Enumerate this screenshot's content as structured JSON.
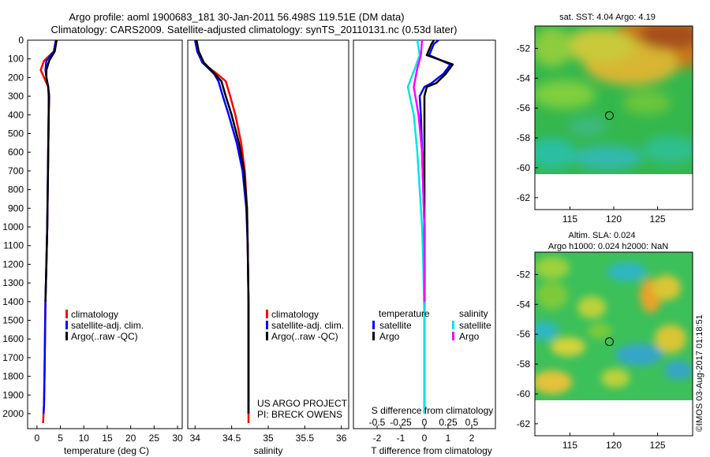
{
  "figure": {
    "title_line1": "Argo profile: aoml 1900683_181 30-Jan-2011 56.498S 119.51E (DM data)",
    "title_line2": "Climatology: CARS2009. Satellite-adjusted climatology: synTS_20110131.nc (0.53d later)",
    "credit": "US ARGO PROJECT",
    "pi": "PI: BRECK OWENS",
    "watermark": "©IMOS 03-Aug-2017 01:18:51"
  },
  "colors": {
    "climatology": "#ff0000",
    "satellite": "#0000ff",
    "argo": "#000000",
    "satellite_s": "#00e5e5",
    "argo_s": "#ff00ff"
  },
  "chart_data": [
    {
      "type": "line",
      "xlabel": "temperature (deg C)",
      "ylabel": "",
      "xlim": [
        -2,
        31
      ],
      "ylim": [
        2080,
        0
      ],
      "xticks": [
        0,
        5,
        10,
        15,
        20,
        25,
        30
      ],
      "yticks": [
        0,
        100,
        200,
        300,
        400,
        500,
        600,
        700,
        800,
        900,
        1000,
        1100,
        1200,
        1300,
        1400,
        1500,
        1600,
        1700,
        1800,
        1900,
        2000
      ],
      "legend": [
        "climatology",
        "satellite-adj. clim.",
        "Argo(..raw -QC)"
      ],
      "series": [
        {
          "name": "climatology",
          "color": "#ff0000",
          "x": [
            4.0,
            3.6,
            1.5,
            0.8,
            1.5,
            2.4,
            2.6,
            2.5,
            2.4,
            2.3,
            2.2,
            2.0,
            1.8,
            1.7,
            1.6,
            1.5,
            1.3
          ],
          "y": [
            0,
            60,
            110,
            160,
            200,
            250,
            300,
            400,
            600,
            800,
            1000,
            1200,
            1400,
            1600,
            1800,
            1950,
            2050
          ]
        },
        {
          "name": "satellite-adj. clim.",
          "color": "#0000ff",
          "x": [
            4.1,
            3.6,
            2.0,
            1.8,
            2.0,
            2.4,
            2.5,
            2.5,
            2.4,
            2.3,
            2.2,
            2.0,
            1.8,
            1.7,
            1.6,
            1.5,
            1.4
          ],
          "y": [
            0,
            60,
            110,
            160,
            200,
            250,
            300,
            400,
            600,
            800,
            1000,
            1200,
            1400,
            1600,
            1800,
            1950,
            2000
          ]
        },
        {
          "name": "Argo(..raw -QC)",
          "color": "#000000",
          "x": [
            4.2,
            3.8,
            2.6,
            2.0,
            2.0,
            2.4,
            2.6,
            2.5,
            2.4,
            2.3,
            2.2,
            2.0,
            1.8
          ],
          "y": [
            0,
            60,
            110,
            160,
            200,
            250,
            300,
            400,
            600,
            800,
            1000,
            1200,
            1400
          ]
        }
      ]
    },
    {
      "type": "line",
      "xlabel": "salinity",
      "xlim": [
        33.9,
        36.1
      ],
      "ylim": [
        2080,
        0
      ],
      "xticks": [
        34,
        34.5,
        35,
        35.5,
        36
      ],
      "legend": [
        "climatology",
        "satellite-adj. clim.",
        "Argo(..raw -QC)"
      ],
      "series": [
        {
          "name": "climatology",
          "color": "#ff0000",
          "x": [
            34.0,
            34.03,
            34.1,
            34.3,
            34.42,
            34.48,
            34.55,
            34.63,
            34.68,
            34.71,
            34.72,
            34.73,
            34.73,
            34.73
          ],
          "y": [
            0,
            60,
            120,
            180,
            220,
            300,
            400,
            550,
            700,
            900,
            1100,
            1400,
            1800,
            2050
          ]
        },
        {
          "name": "satellite-adj. clim.",
          "color": "#0000ff",
          "x": [
            34.0,
            34.03,
            34.1,
            34.26,
            34.32,
            34.38,
            34.46,
            34.57,
            34.65,
            34.7,
            34.72,
            34.73,
            34.73,
            34.73
          ],
          "y": [
            0,
            60,
            120,
            180,
            220,
            300,
            400,
            550,
            700,
            900,
            1100,
            1400,
            1800,
            2000
          ]
        },
        {
          "name": "Argo(..raw -QC)",
          "color": "#000000",
          "x": [
            34.02,
            34.05,
            34.12,
            34.27,
            34.36,
            34.42,
            34.5,
            34.6,
            34.67,
            34.71,
            34.72,
            34.73,
            34.73,
            34.73
          ],
          "y": [
            0,
            60,
            120,
            180,
            220,
            300,
            400,
            550,
            700,
            900,
            1100,
            1400,
            1800,
            2000
          ]
        }
      ]
    },
    {
      "type": "line",
      "xlabel": "T difference from climatology",
      "xlabel_top": "S difference from climatology",
      "xlim": [
        -3,
        3
      ],
      "ylim": [
        2080,
        0
      ],
      "xticks": [
        -2,
        -1,
        0,
        1,
        2
      ],
      "xticks_s_labels": [
        "-0.5",
        "-0.25",
        "0",
        "0.25",
        "0.5"
      ],
      "legend_groups": [
        {
          "heading": "temperature",
          "items": [
            "satellite",
            "Argo"
          ]
        },
        {
          "heading": "salinity",
          "items": [
            "satellite",
            "Argo"
          ]
        }
      ],
      "series": [
        {
          "name": "temperature satellite",
          "color": "#0000ff",
          "x": [
            0.6,
            0.4,
            0.2,
            1.1,
            0.8,
            0.3,
            0.0,
            -0.2,
            -0.15,
            -0.1,
            -0.05,
            0.0,
            0.0,
            0.0,
            0.0
          ],
          "y": [
            0,
            20,
            80,
            130,
            180,
            230,
            250,
            300,
            400,
            600,
            800,
            1000,
            1400,
            1800,
            2000
          ]
        },
        {
          "name": "temperature Argo",
          "color": "#000000",
          "x": [
            0.4,
            0.3,
            0.1,
            1.2,
            0.9,
            0.5,
            0.1,
            0.0,
            0.0,
            0.0,
            0.0,
            0.0,
            0.0
          ],
          "y": [
            0,
            20,
            80,
            130,
            180,
            230,
            250,
            300,
            400,
            600,
            800,
            1000,
            1400
          ]
        },
        {
          "name": "salinity satellite",
          "color": "#00e5e5",
          "x": [
            -0.3,
            -0.2,
            -0.4,
            -0.7,
            -0.45,
            -0.3,
            -0.2,
            -0.1,
            -0.05,
            0.0,
            0.0,
            0.0
          ],
          "y": [
            0,
            80,
            150,
            250,
            400,
            600,
            800,
            1000,
            1200,
            1500,
            1800,
            2000
          ]
        },
        {
          "name": "salinity Argo",
          "color": "#ff00ff",
          "x": [
            -0.1,
            -0.15,
            -0.3,
            -0.45,
            -0.25,
            -0.1,
            -0.05,
            0.0,
            0.0,
            0.0
          ],
          "y": [
            0,
            80,
            150,
            250,
            400,
            600,
            800,
            1000,
            1200,
            1400
          ]
        }
      ]
    },
    {
      "type": "heatmap",
      "title": "sat. SST: 4.04  Argo: 4.19",
      "xlim": [
        111,
        129
      ],
      "ylim": [
        -62.8,
        -50.5
      ],
      "xticks": [
        115,
        120,
        125
      ],
      "yticks": [
        -52,
        -54,
        -56,
        -58,
        -60,
        -62
      ],
      "data_south_limit": -60,
      "marker": [
        119.5,
        -56.5
      ]
    },
    {
      "type": "heatmap",
      "title_line1": "Altim. SLA: 0.024",
      "title_line2": "Argo h1000: 0.024 h2000: NaN",
      "xlim": [
        111,
        129
      ],
      "ylim": [
        -62.8,
        -50.5
      ],
      "xticks": [
        115,
        120,
        125
      ],
      "yticks": [
        -52,
        -54,
        -56,
        -58,
        -60,
        -62
      ],
      "data_south_limit": -60,
      "marker": [
        119.5,
        -56.5
      ]
    }
  ]
}
